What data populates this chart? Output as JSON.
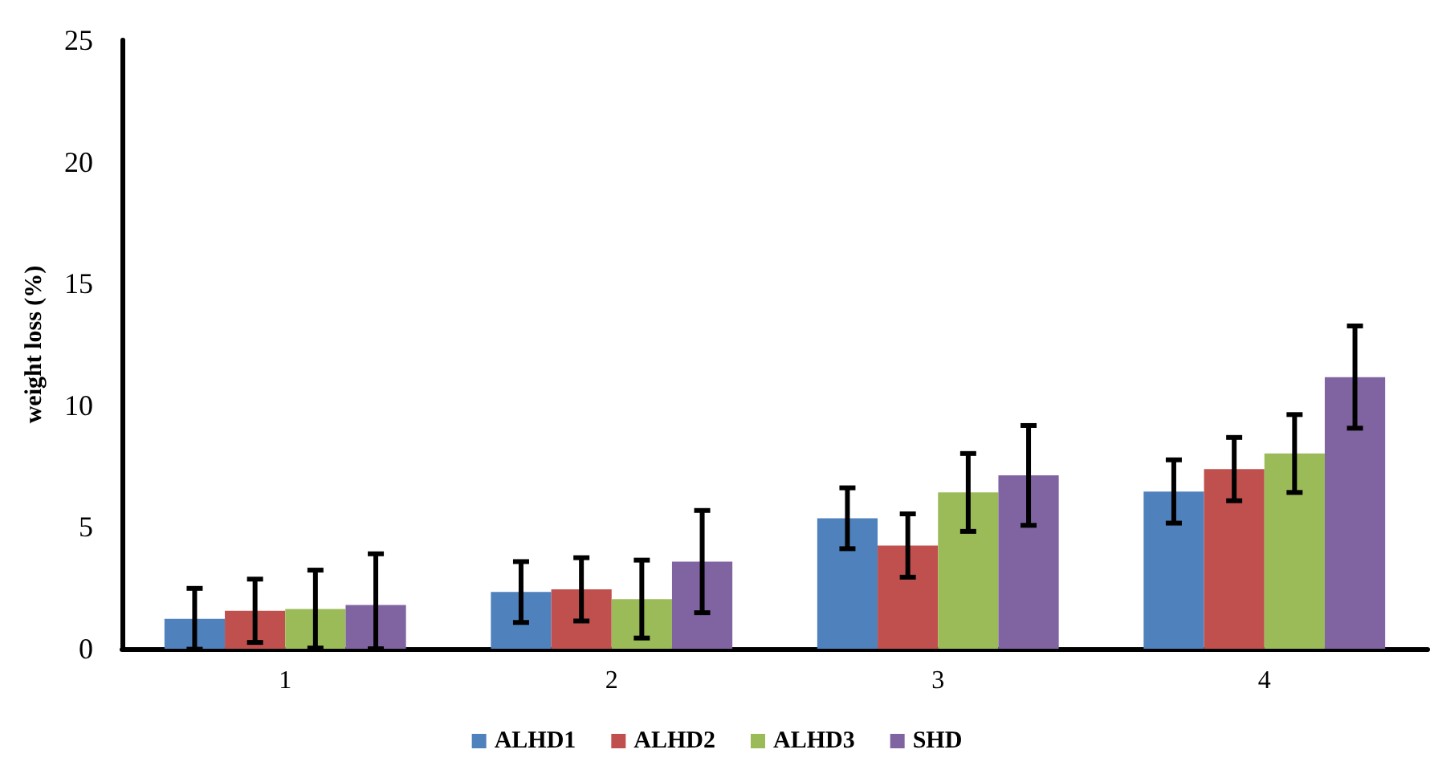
{
  "chart_data": {
    "type": "bar",
    "ylabel": "weight loss (%)",
    "categories": [
      "1",
      "2",
      "3",
      "4"
    ],
    "series": [
      {
        "name": "ALHD1",
        "color": "#4f81bd",
        "values": [
          1.23,
          2.33,
          5.36,
          6.46
        ],
        "errors": [
          1.25,
          1.25,
          1.25,
          1.3
        ]
      },
      {
        "name": "ALHD2",
        "color": "#c0504d",
        "values": [
          1.56,
          2.44,
          4.24,
          7.38
        ],
        "errors": [
          1.3,
          1.3,
          1.3,
          1.3
        ]
      },
      {
        "name": "ALHD3",
        "color": "#9bbb59",
        "values": [
          1.63,
          2.04,
          6.42,
          8.02
        ],
        "errors": [
          1.6,
          1.6,
          1.6,
          1.6
        ]
      },
      {
        "name": "SHD",
        "color": "#8064a2",
        "values": [
          1.8,
          3.58,
          7.12,
          11.16
        ],
        "errors": [
          [
            0,
            3.9
          ],
          2.1,
          2.05,
          2.1
        ]
      }
    ],
    "ylim": [
      0,
      25
    ],
    "yticks": [
      0,
      5,
      10,
      15,
      20,
      25
    ],
    "grid": false,
    "legend": "bottom"
  }
}
